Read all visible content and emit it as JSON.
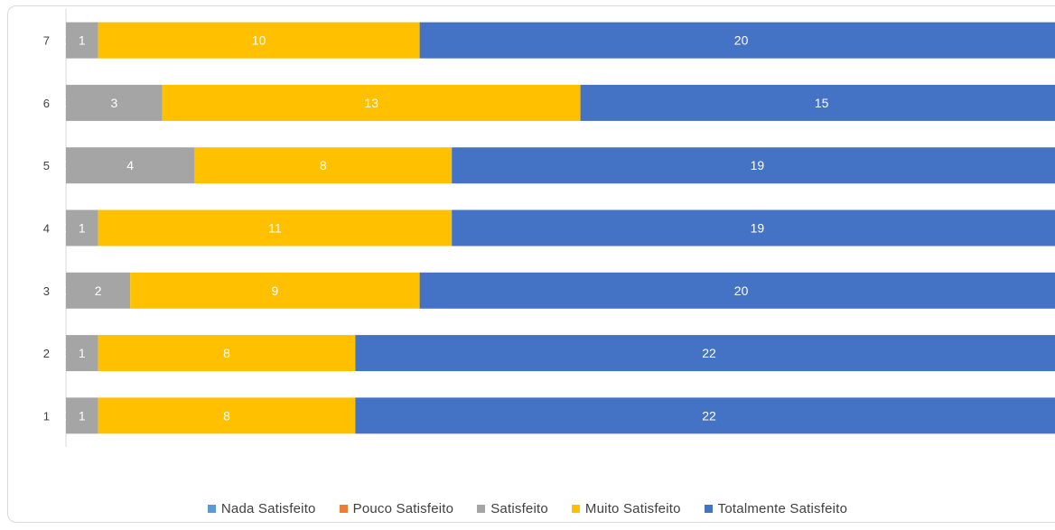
{
  "chart_data": {
    "type": "bar",
    "orientation": "horizontal",
    "stacked": true,
    "title": "",
    "xlabel": "",
    "ylabel": "",
    "categories": [
      "1",
      "2",
      "3",
      "4",
      "5",
      "6",
      "7"
    ],
    "series": [
      {
        "name": "Nada Satisfeito",
        "color": "#5B9BD5",
        "values": [
          0,
          0,
          0,
          0,
          0,
          0,
          0
        ]
      },
      {
        "name": "Pouco Satisfeito",
        "color": "#ED7D31",
        "values": [
          0,
          0,
          0,
          0,
          0,
          0,
          0
        ]
      },
      {
        "name": "Satisfeito",
        "color": "#A5A5A5",
        "values": [
          1,
          1,
          2,
          1,
          4,
          3,
          1
        ]
      },
      {
        "name": "Muito Satisfeito",
        "color": "#FFC000",
        "values": [
          8,
          8,
          9,
          11,
          8,
          13,
          10
        ]
      },
      {
        "name": "Totalmente Satisfeito",
        "color": "#4472C4",
        "values": [
          22,
          22,
          20,
          19,
          19,
          15,
          20
        ]
      }
    ],
    "legend_position": "bottom",
    "grid": false
  }
}
